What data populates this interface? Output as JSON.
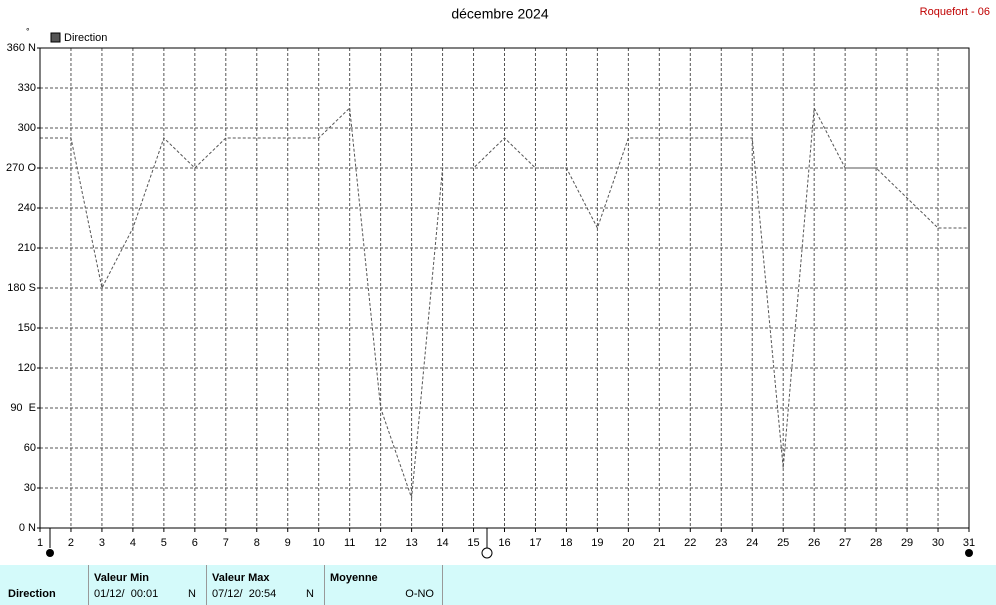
{
  "chart_data": {
    "type": "line",
    "title": "décembre 2024",
    "station": "Roquefort - 06",
    "y_unit": "°",
    "x": [
      1,
      2,
      3,
      4,
      5,
      6,
      7,
      8,
      9,
      10,
      11,
      12,
      13,
      14,
      15,
      16,
      17,
      18,
      19,
      20,
      21,
      22,
      23,
      24,
      25,
      26,
      27,
      28,
      29,
      30,
      31
    ],
    "series": [
      {
        "name": "Direction",
        "color": "#555555",
        "values": [
          292.5,
          292.5,
          180,
          225,
          292.5,
          270,
          292.5,
          292.5,
          292.5,
          292.5,
          315,
          90,
          22.5,
          270,
          270,
          292.5,
          270,
          270,
          225,
          292.5,
          292.5,
          292.5,
          292.5,
          292.5,
          45,
          315,
          270,
          270,
          247.5,
          225,
          225
        ]
      }
    ],
    "xlim": [
      1,
      31
    ],
    "xticks": [
      1,
      2,
      3,
      4,
      5,
      6,
      7,
      8,
      9,
      10,
      11,
      12,
      13,
      14,
      15,
      16,
      17,
      18,
      19,
      20,
      21,
      22,
      23,
      24,
      25,
      26,
      27,
      28,
      29,
      30,
      31
    ],
    "ylim": [
      0,
      360
    ],
    "yticks": [
      {
        "value": 0,
        "label": "0 N"
      },
      30,
      60,
      {
        "value": 90,
        "label": "90  E"
      },
      120,
      150,
      {
        "value": 180,
        "label": "180 S"
      },
      210,
      240,
      {
        "value": 270,
        "label": "270 O"
      },
      300,
      330,
      {
        "value": 360,
        "label": "360 N"
      }
    ],
    "grid": true
  },
  "summary": {
    "row_label": "Direction",
    "min": {
      "header": "Valeur Min",
      "date": "01/12/  00:01",
      "dir": "N"
    },
    "max": {
      "header": "Valeur Max",
      "date": "07/12/  20:54",
      "dir": "N"
    },
    "mean": {
      "header": "Moyenne",
      "value": "O-NO"
    }
  }
}
